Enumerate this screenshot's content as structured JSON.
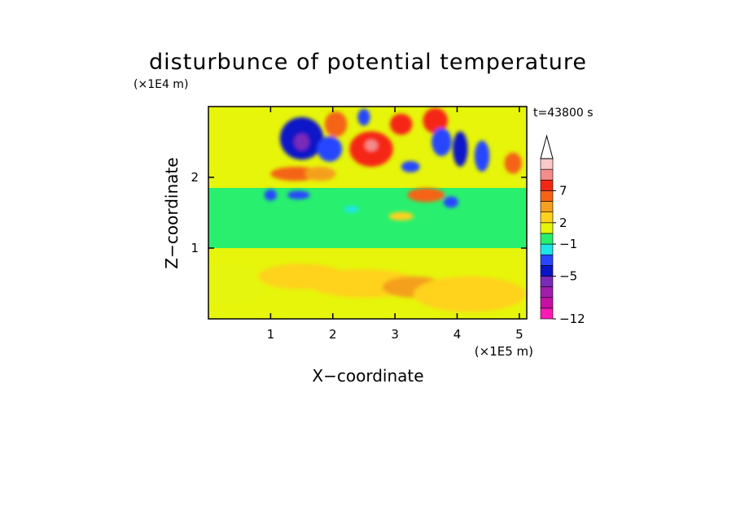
{
  "chart_data": {
    "type": "heatmap",
    "title": "disturbunce of potential temperature",
    "xlabel": "X−coordinate",
    "ylabel": "Z−coordinate",
    "x_scale_label": "(×1E5 m)",
    "y_scale_label": "(×1E4 m)",
    "time_label": "t=43800 s",
    "xlim": [
      0,
      5.12
    ],
    "ylim": [
      0,
      3.0
    ],
    "x_ticks": [
      1,
      2,
      3,
      4,
      5
    ],
    "x_tick_labels": [
      "1",
      "2",
      "3",
      "4",
      "5"
    ],
    "y_ticks": [
      1,
      2
    ],
    "y_tick_labels": [
      "1",
      "2"
    ],
    "colorbar": {
      "levels": [
        -12,
        -5,
        -1,
        2,
        7
      ],
      "level_labels": [
        "−12",
        "−5",
        "−1",
        "2",
        "7"
      ],
      "colors": [
        "#ff1ab4",
        "#c80fa5",
        "#a01eaa",
        "#7a2ab8",
        "#0a14c8",
        "#2846ff",
        "#1ee6e6",
        "#28f06e",
        "#e6f50a",
        "#ffd21e",
        "#f5a01e",
        "#f56414",
        "#f52814",
        "#f58c8c",
        "#fac8c8"
      ],
      "extend": "max"
    },
    "features": [
      {
        "x": 0.2,
        "z": 0.5,
        "w": 0.8,
        "h": 0.3,
        "value": 0.5
      },
      {
        "x": 1.5,
        "z": 0.6,
        "w": 0.7,
        "h": 0.18,
        "value": 1.5
      },
      {
        "x": 2.5,
        "z": 0.5,
        "w": 0.9,
        "h": 0.2,
        "value": 1.5
      },
      {
        "x": 3.3,
        "z": 0.45,
        "w": 0.5,
        "h": 0.15,
        "value": 2.5
      },
      {
        "x": 4.2,
        "z": 0.35,
        "w": 0.9,
        "h": 0.25,
        "value": 1.2
      },
      {
        "x": 1.5,
        "z": 2.55,
        "w": 0.35,
        "h": 0.3,
        "value": -5
      },
      {
        "x": 1.5,
        "z": 2.5,
        "w": 0.12,
        "h": 0.12,
        "value": -7
      },
      {
        "x": 1.95,
        "z": 2.4,
        "w": 0.2,
        "h": 0.18,
        "value": -4
      },
      {
        "x": 2.62,
        "z": 2.4,
        "w": 0.35,
        "h": 0.25,
        "value": 5
      },
      {
        "x": 2.62,
        "z": 2.45,
        "w": 0.1,
        "h": 0.08,
        "value": 8
      },
      {
        "x": 2.05,
        "z": 2.75,
        "w": 0.18,
        "h": 0.18,
        "value": 4
      },
      {
        "x": 2.5,
        "z": 2.85,
        "w": 0.1,
        "h": 0.12,
        "value": -4
      },
      {
        "x": 3.25,
        "z": 2.15,
        "w": 0.15,
        "h": 0.08,
        "value": -4
      },
      {
        "x": 3.1,
        "z": 2.75,
        "w": 0.18,
        "h": 0.15,
        "value": 5
      },
      {
        "x": 3.65,
        "z": 2.8,
        "w": 0.2,
        "h": 0.18,
        "value": 5
      },
      {
        "x": 3.75,
        "z": 2.5,
        "w": 0.16,
        "h": 0.2,
        "value": -4
      },
      {
        "x": 4.05,
        "z": 2.4,
        "w": 0.12,
        "h": 0.25,
        "value": -5
      },
      {
        "x": 4.4,
        "z": 2.3,
        "w": 0.12,
        "h": 0.22,
        "value": -4
      },
      {
        "x": 4.9,
        "z": 2.2,
        "w": 0.14,
        "h": 0.15,
        "value": 4
      },
      {
        "x": 1.4,
        "z": 2.05,
        "w": 0.4,
        "h": 0.1,
        "value": 4
      },
      {
        "x": 1.8,
        "z": 2.05,
        "w": 0.25,
        "h": 0.1,
        "value": 3
      },
      {
        "x": 1.45,
        "z": 1.75,
        "w": 0.18,
        "h": 0.06,
        "value": -4
      },
      {
        "x": 1.0,
        "z": 1.75,
        "w": 0.1,
        "h": 0.08,
        "value": -4
      },
      {
        "x": 3.5,
        "z": 1.75,
        "w": 0.3,
        "h": 0.1,
        "value": 4
      },
      {
        "x": 3.9,
        "z": 1.65,
        "w": 0.12,
        "h": 0.08,
        "value": -4
      },
      {
        "x": 2.3,
        "z": 1.55,
        "w": 0.12,
        "h": 0.05,
        "value": -2
      },
      {
        "x": 3.1,
        "z": 1.45,
        "w": 0.2,
        "h": 0.06,
        "value": 1
      }
    ]
  }
}
